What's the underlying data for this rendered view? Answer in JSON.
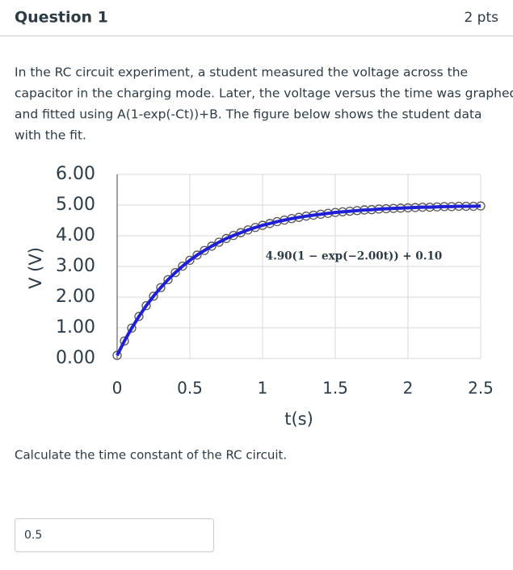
{
  "header": {
    "title": "Question 1",
    "points": "2 pts"
  },
  "question": {
    "lines": [
      "In the RC circuit experiment, a student measured the voltage across the",
      "capacitor in the charging mode. Later, the voltage versus the time was graphed",
      "and fitted using A(1-exp(-Ct))+B. The figure below shows the student data",
      "with the fit."
    ]
  },
  "chart_data": {
    "type": "line",
    "x_label": "t(s)",
    "y_label": "V (V)",
    "annotation": "4.90(1 − exp(−2.00t)) + 0.10",
    "x": [
      0,
      0.05,
      0.1,
      0.15,
      0.2,
      0.25,
      0.3,
      0.35,
      0.4,
      0.45,
      0.5,
      0.55,
      0.6,
      0.65,
      0.7,
      0.75,
      0.8,
      0.85,
      0.9,
      0.95,
      1,
      1.05,
      1.1,
      1.15,
      1.2,
      1.25,
      1.3,
      1.35,
      1.4,
      1.45,
      1.5,
      1.55,
      1.6,
      1.65,
      1.7,
      1.75,
      1.8,
      1.85,
      1.9,
      1.95,
      2,
      2.05,
      2.1,
      2.15,
      2.2,
      2.25,
      2.3,
      2.35,
      2.4,
      2.45,
      2.5
    ],
    "series": [
      {
        "style": "markers",
        "color": "#555555",
        "values": [
          0.1,
          0.57,
          0.99,
          1.37,
          1.72,
          2.03,
          2.31,
          2.57,
          2.8,
          3.01,
          3.2,
          3.37,
          3.52,
          3.66,
          3.79,
          3.91,
          4.01,
          4.1,
          4.19,
          4.27,
          4.34,
          4.4,
          4.46,
          4.51,
          4.56,
          4.6,
          4.64,
          4.67,
          4.7,
          4.73,
          4.76,
          4.78,
          4.8,
          4.82,
          4.84,
          4.85,
          4.87,
          4.88,
          4.89,
          4.9,
          4.91,
          4.92,
          4.93,
          4.93,
          4.94,
          4.95,
          4.95,
          4.96,
          4.96,
          4.96,
          4.97
        ]
      },
      {
        "style": "line",
        "color": "#1f1fd6",
        "values": [
          0.1,
          0.57,
          0.99,
          1.37,
          1.72,
          2.03,
          2.31,
          2.57,
          2.8,
          3.01,
          3.2,
          3.37,
          3.52,
          3.66,
          3.79,
          3.91,
          4.01,
          4.1,
          4.19,
          4.27,
          4.34,
          4.4,
          4.46,
          4.51,
          4.56,
          4.6,
          4.64,
          4.67,
          4.7,
          4.73,
          4.76,
          4.78,
          4.8,
          4.82,
          4.84,
          4.85,
          4.87,
          4.88,
          4.89,
          4.9,
          4.91,
          4.92,
          4.93,
          4.93,
          4.94,
          4.95,
          4.95,
          4.96,
          4.96,
          4.96,
          4.97
        ]
      }
    ],
    "xlim": [
      0,
      2.5
    ],
    "xticks": [
      0,
      0.5,
      1,
      1.5,
      2,
      2.5
    ],
    "ylim": [
      0,
      6
    ],
    "yticks": [
      {
        "value": 0,
        "label": "0.00"
      },
      {
        "value": 1,
        "label": "1.00"
      },
      {
        "value": 2,
        "label": "2.00"
      },
      {
        "value": 3,
        "label": "3.00"
      },
      {
        "value": 4,
        "label": "4.00"
      },
      {
        "value": 5,
        "label": "5.00"
      },
      {
        "value": 6,
        "label": "6.00"
      }
    ],
    "grid": true
  },
  "prompt": "Calculate the time constant of the RC circuit.",
  "answer": {
    "value": 0.5
  }
}
